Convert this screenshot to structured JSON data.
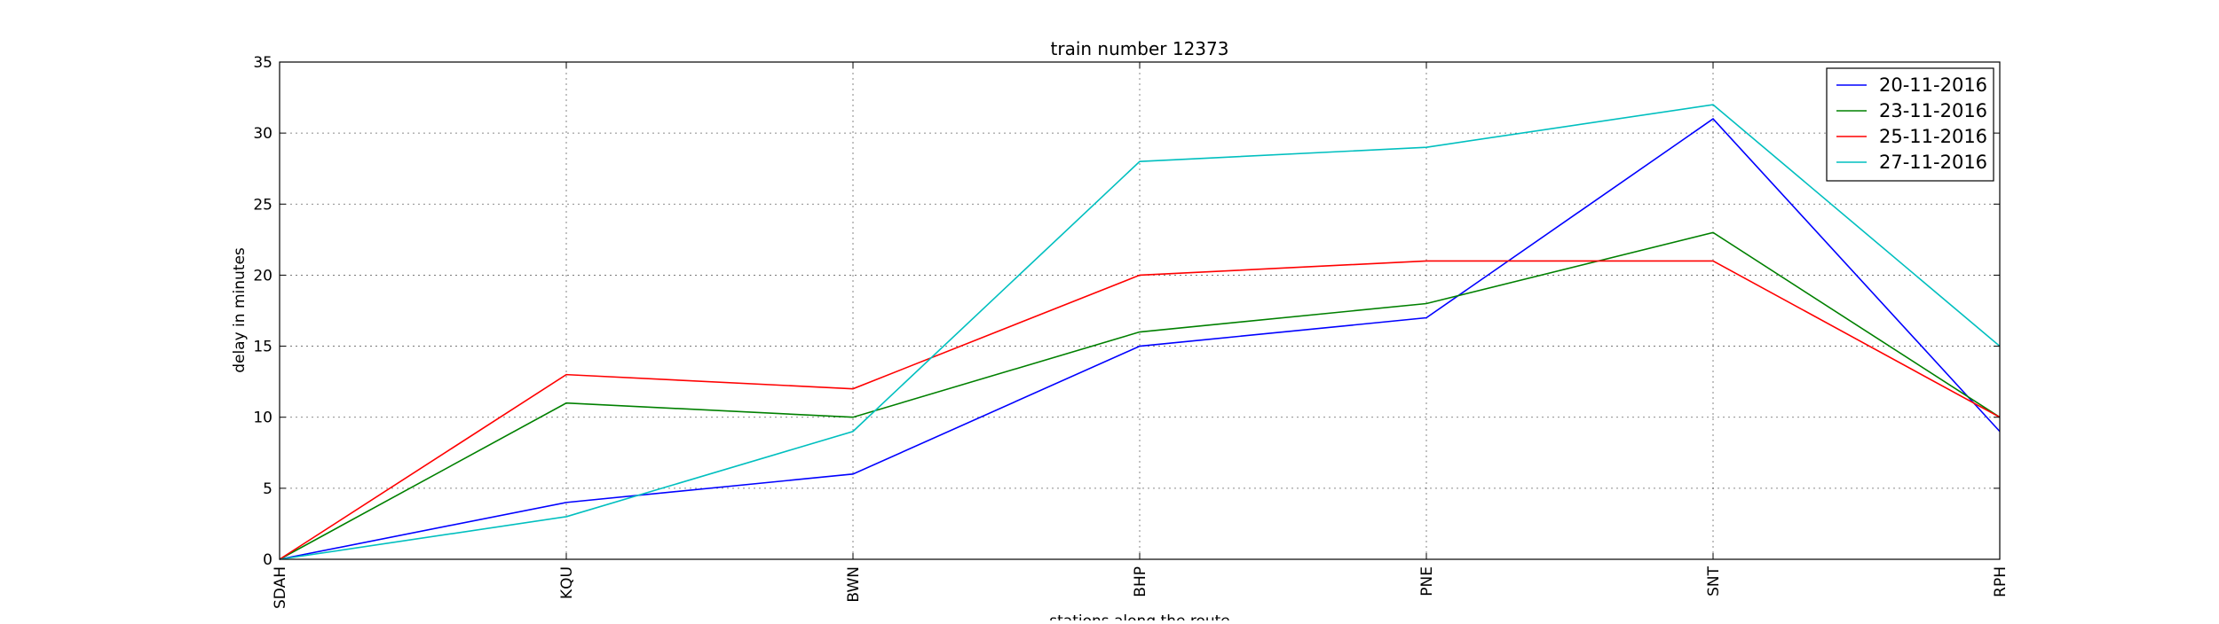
{
  "chart_data": {
    "type": "line",
    "title": "train number 12373",
    "xlabel": "stations along the route",
    "ylabel": "delay in minutes",
    "categories": [
      "SDAH",
      "KQU",
      "BWN",
      "BHP",
      "PNE",
      "SNT",
      "RPH"
    ],
    "ylim": [
      0,
      35
    ],
    "yticks": [
      0,
      5,
      10,
      15,
      20,
      25,
      30,
      35
    ],
    "grid": true,
    "legend_position": "top-right",
    "series": [
      {
        "name": "20-11-2016",
        "color": "#0000ff",
        "values": [
          0,
          4,
          6,
          15,
          17,
          31,
          9
        ]
      },
      {
        "name": "23-11-2016",
        "color": "#008000",
        "values": [
          0,
          11,
          10,
          16,
          18,
          23,
          10
        ]
      },
      {
        "name": "25-11-2016",
        "color": "#ff0000",
        "values": [
          0,
          13,
          12,
          20,
          21,
          21,
          10
        ]
      },
      {
        "name": "27-11-2016",
        "color": "#00bfbf",
        "values": [
          0,
          3,
          9,
          28,
          29,
          32,
          15
        ]
      }
    ]
  }
}
